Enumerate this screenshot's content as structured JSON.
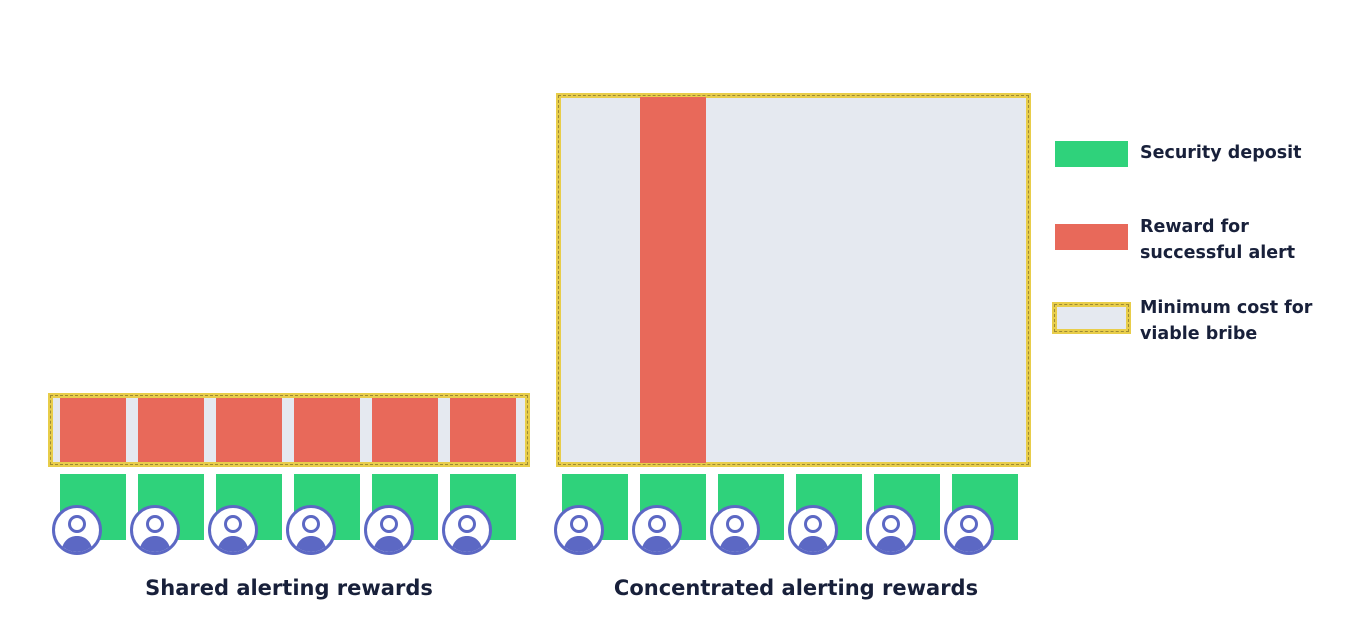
{
  "colors": {
    "security_deposit": "#2fd27b",
    "reward": "#e8695a",
    "bribe_fill": "#e5e9f0",
    "bribe_border": "#e8cd4a",
    "avatar": "#5c68c4",
    "text": "#18203a"
  },
  "legend": {
    "security_deposit": "Security deposit",
    "reward": "Reward for\nsuccessful alert",
    "bribe": "Minimum cost for\nviable bribe"
  },
  "panels": {
    "shared": {
      "caption": "Shared alerting rewards",
      "participants": 6
    },
    "concentrated": {
      "caption": "Concentrated alerting rewards",
      "participants": 6
    }
  },
  "icons": {
    "participant": "user-icon"
  }
}
